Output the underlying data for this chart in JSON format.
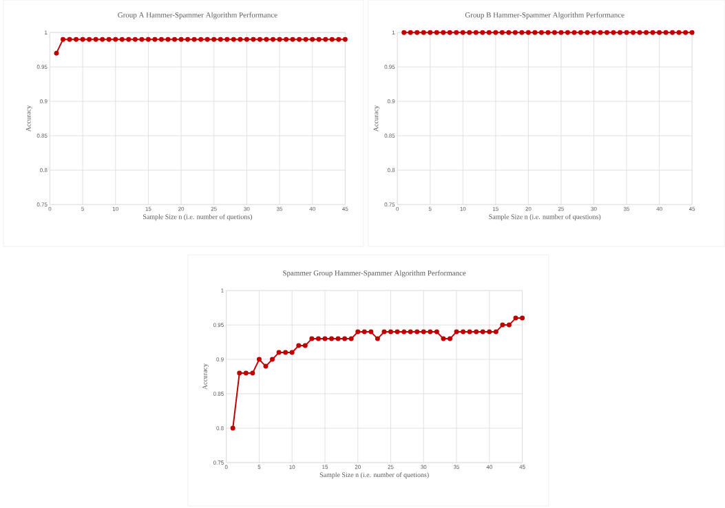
{
  "chart_data": [
    {
      "type": "line",
      "title": "Group A Hammer-Spammer Algorithm Performance",
      "xlabel": "Sample Size n  (i.e. number of quetions)",
      "ylabel": "Accuracy",
      "color": "#c00000",
      "marker": "circle",
      "grid": true,
      "x": [
        1,
        2,
        3,
        4,
        5,
        6,
        7,
        8,
        9,
        10,
        11,
        12,
        13,
        14,
        15,
        16,
        17,
        18,
        19,
        20,
        21,
        22,
        23,
        24,
        25,
        26,
        27,
        28,
        29,
        30,
        31,
        32,
        33,
        34,
        35,
        36,
        37,
        38,
        39,
        40,
        41,
        42,
        43,
        44,
        45
      ],
      "values": [
        0.97,
        0.99,
        0.99,
        0.99,
        0.99,
        0.99,
        0.99,
        0.99,
        0.99,
        0.99,
        0.99,
        0.99,
        0.99,
        0.99,
        0.99,
        0.99,
        0.99,
        0.99,
        0.99,
        0.99,
        0.99,
        0.99,
        0.99,
        0.99,
        0.99,
        0.99,
        0.99,
        0.99,
        0.99,
        0.99,
        0.99,
        0.99,
        0.99,
        0.99,
        0.99,
        0.99,
        0.99,
        0.99,
        0.99,
        0.99,
        0.99,
        0.99,
        0.99,
        0.99,
        0.99
      ],
      "xlim": [
        0,
        45
      ],
      "xticks": [
        0,
        5,
        10,
        15,
        20,
        25,
        30,
        35,
        40,
        45
      ],
      "ylim": [
        0.75,
        1
      ],
      "yticks": [
        0.75,
        0.8,
        0.85,
        0.9,
        0.95,
        1
      ]
    },
    {
      "type": "line",
      "title": "Group B Hammer-Spammer Algorithm Performance",
      "xlabel": "Sample Size n  (i.e. number of questions)",
      "ylabel": "Accuracy",
      "color": "#c00000",
      "marker": "circle",
      "grid": true,
      "x": [
        1,
        2,
        3,
        4,
        5,
        6,
        7,
        8,
        9,
        10,
        11,
        12,
        13,
        14,
        15,
        16,
        17,
        18,
        19,
        20,
        21,
        22,
        23,
        24,
        25,
        26,
        27,
        28,
        29,
        30,
        31,
        32,
        33,
        34,
        35,
        36,
        37,
        38,
        39,
        40,
        41,
        42,
        43,
        44,
        45
      ],
      "values": [
        1,
        1,
        1,
        1,
        1,
        1,
        1,
        1,
        1,
        1,
        1,
        1,
        1,
        1,
        1,
        1,
        1,
        1,
        1,
        1,
        1,
        1,
        1,
        1,
        1,
        1,
        1,
        1,
        1,
        1,
        1,
        1,
        1,
        1,
        1,
        1,
        1,
        1,
        1,
        1,
        1,
        1,
        1,
        1,
        1
      ],
      "xlim": [
        0,
        45
      ],
      "xticks": [
        0,
        5,
        10,
        15,
        20,
        25,
        30,
        35,
        40,
        45
      ],
      "ylim": [
        0.75,
        1
      ],
      "yticks": [
        0.75,
        0.8,
        0.85,
        0.9,
        0.95,
        1
      ]
    },
    {
      "type": "line",
      "title": "Spammer Group Hammer-Spammer Algorithm Performance",
      "xlabel": "Sample Size n  (i.e. number of quetions)",
      "ylabel": "Accuracy",
      "color": "#c00000",
      "marker": "circle",
      "grid": true,
      "x": [
        1,
        2,
        3,
        4,
        5,
        6,
        7,
        8,
        9,
        10,
        11,
        12,
        13,
        14,
        15,
        16,
        17,
        18,
        19,
        20,
        21,
        22,
        23,
        24,
        25,
        26,
        27,
        28,
        29,
        30,
        31,
        32,
        33,
        34,
        35,
        36,
        37,
        38,
        39,
        40,
        41,
        42,
        43,
        44,
        45
      ],
      "values": [
        0.8,
        0.88,
        0.88,
        0.88,
        0.9,
        0.89,
        0.9,
        0.91,
        0.91,
        0.91,
        0.92,
        0.92,
        0.93,
        0.93,
        0.93,
        0.93,
        0.93,
        0.93,
        0.93,
        0.94,
        0.94,
        0.94,
        0.93,
        0.94,
        0.94,
        0.94,
        0.94,
        0.94,
        0.94,
        0.94,
        0.94,
        0.94,
        0.93,
        0.93,
        0.94,
        0.94,
        0.94,
        0.94,
        0.94,
        0.94,
        0.94,
        0.95,
        0.95,
        0.96,
        0.96
      ],
      "xlim": [
        0,
        45
      ],
      "xticks": [
        0,
        5,
        10,
        15,
        20,
        25,
        30,
        35,
        40,
        45
      ],
      "ylim": [
        0.75,
        1
      ],
      "yticks": [
        0.75,
        0.8,
        0.85,
        0.9,
        0.95,
        1
      ]
    }
  ]
}
